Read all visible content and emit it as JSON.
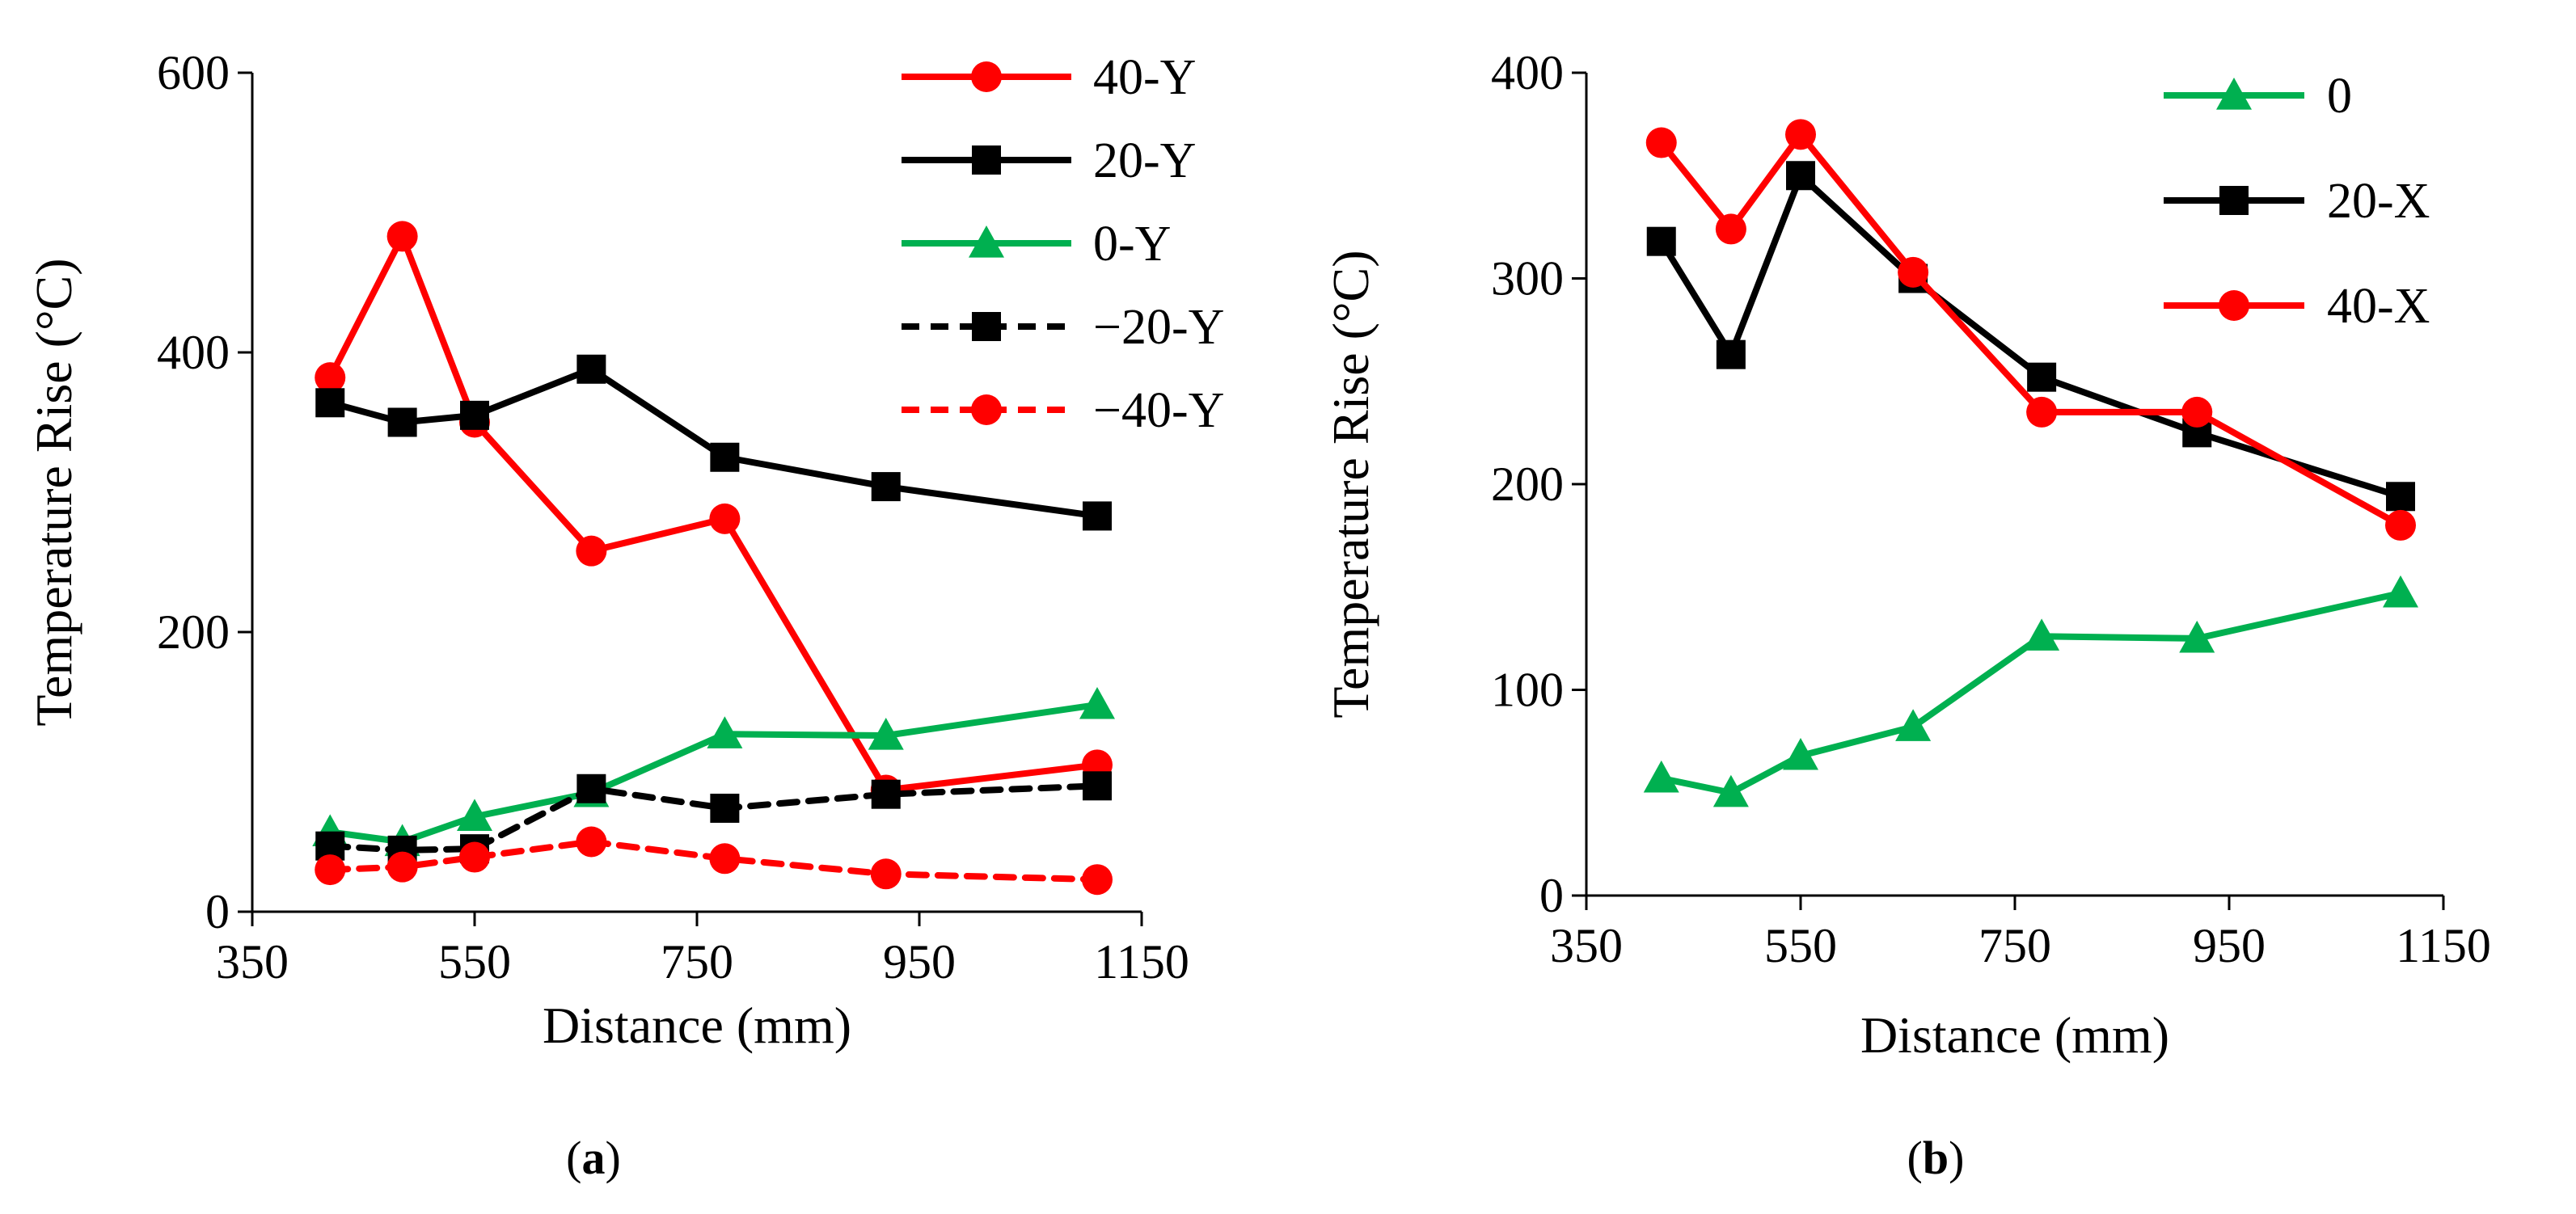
{
  "figure": {
    "panel_a_label": "a",
    "panel_b_label": "b"
  },
  "chart_data": [
    {
      "type": "line",
      "panel": "a",
      "xlabel": "Distance (mm)",
      "ylabel": "Temperature Rise (°C)",
      "xlim": [
        350,
        1150
      ],
      "ylim": [
        0,
        600
      ],
      "xticks": [
        350,
        550,
        750,
        950,
        1150
      ],
      "yticks": [
        0,
        200,
        400,
        600
      ],
      "legend_position": "top-right",
      "x": [
        420,
        485,
        550,
        655,
        775,
        920,
        1110
      ],
      "series": [
        {
          "name": "40-Y",
          "color": "#ff0000",
          "dash": false,
          "marker": "circle",
          "values": [
            382,
            483,
            350,
            258,
            281,
            87,
            105
          ]
        },
        {
          "name": "20-Y",
          "color": "#000000",
          "dash": false,
          "marker": "square",
          "values": [
            364,
            350,
            355,
            388,
            325,
            304,
            283
          ]
        },
        {
          "name": "0-Y",
          "color": "#00b050",
          "dash": false,
          "marker": "triangle",
          "values": [
            57,
            50,
            68,
            85,
            127,
            126,
            148
          ]
        },
        {
          "name": "−20-Y",
          "color": "#000000",
          "dash": true,
          "marker": "square",
          "values": [
            47,
            44,
            45,
            88,
            74,
            84,
            90
          ]
        },
        {
          "name": "−40-Y",
          "color": "#ff0000",
          "dash": true,
          "marker": "circle",
          "values": [
            30,
            32,
            39,
            50,
            38,
            27,
            23
          ]
        }
      ]
    },
    {
      "type": "line",
      "panel": "b",
      "xlabel": "Distance (mm)",
      "ylabel": "Temperature Rise (°C)",
      "xlim": [
        350,
        1150
      ],
      "ylim": [
        0,
        400
      ],
      "xticks": [
        350,
        550,
        750,
        950,
        1150
      ],
      "yticks": [
        0,
        100,
        200,
        300,
        400
      ],
      "legend_position": "top-right",
      "x": [
        420,
        485,
        550,
        655,
        775,
        920,
        1110
      ],
      "series": [
        {
          "name": "0",
          "color": "#00b050",
          "dash": false,
          "marker": "triangle",
          "values": [
            57,
            50,
            68,
            82,
            126,
            125,
            147
          ]
        },
        {
          "name": "20-X",
          "color": "#000000",
          "dash": false,
          "marker": "square",
          "values": [
            318,
            263,
            350,
            300,
            252,
            225,
            194
          ]
        },
        {
          "name": "40-X",
          "color": "#ff0000",
          "dash": false,
          "marker": "circle",
          "values": [
            366,
            324,
            370,
            303,
            235,
            235,
            180
          ]
        }
      ]
    }
  ]
}
